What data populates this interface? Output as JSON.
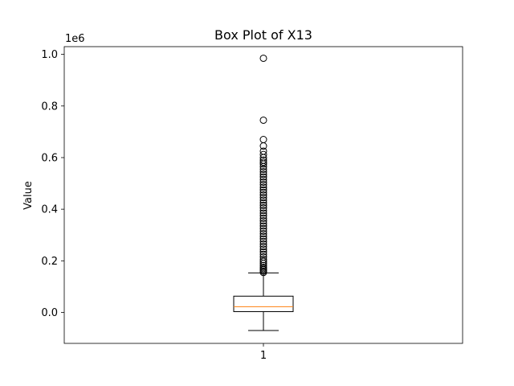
{
  "chart_data": {
    "type": "box",
    "title": "Box Plot of X13",
    "xlabel": "",
    "ylabel": "Value",
    "y_scale_label": "1e6",
    "categories": [
      "1"
    ],
    "ylim": [
      -120000,
      1030000
    ],
    "yticks": [
      0.0,
      0.2,
      0.4,
      0.6,
      0.8,
      1.0
    ],
    "ytick_labels": [
      "0.0",
      "0.2",
      "0.4",
      "0.6",
      "0.8",
      "1.0"
    ],
    "ytick_multiplier": 1000000,
    "grid": false,
    "box": {
      "whisker_low": -70000,
      "q1": 3000,
      "median": 22000,
      "q3": 63000,
      "whisker_high": 153000
    },
    "outliers": [
      155000,
      160000,
      165000,
      170000,
      175000,
      182000,
      190000,
      198000,
      205000,
      215000,
      225000,
      235000,
      245000,
      255000,
      265000,
      275000,
      285000,
      295000,
      305000,
      315000,
      325000,
      335000,
      345000,
      355000,
      365000,
      375000,
      385000,
      395000,
      405000,
      415000,
      425000,
      435000,
      445000,
      455000,
      465000,
      475000,
      485000,
      495000,
      505000,
      515000,
      525000,
      535000,
      545000,
      555000,
      565000,
      575000,
      582000,
      590000,
      600000,
      612000,
      625000,
      645000,
      670000,
      745000,
      985000
    ],
    "colors": {
      "box": "#000000",
      "median": "#ff7f0e",
      "outlier": "#000000"
    }
  }
}
